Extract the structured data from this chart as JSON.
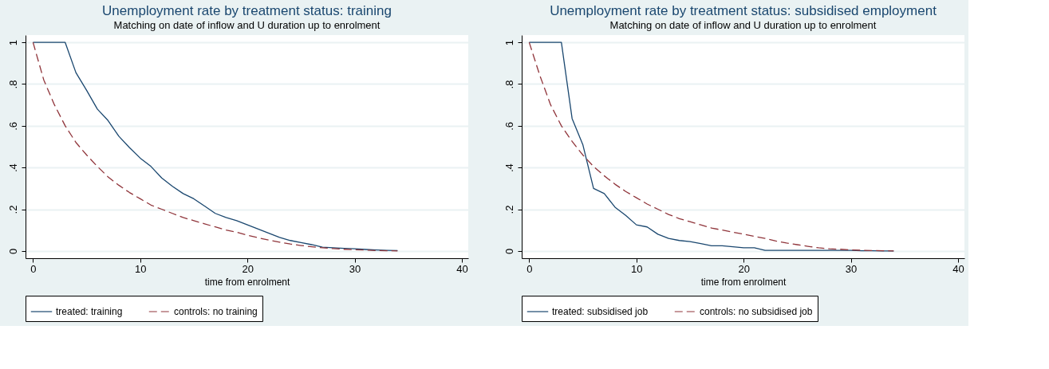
{
  "chart_data": [
    {
      "type": "line",
      "title": "Unemployment rate by treatment status: training",
      "subtitle": "Matching on date of inflow and U duration up to enrolment",
      "xlabel": "time from enrolment",
      "x": [
        0,
        1,
        2,
        3,
        4,
        5,
        6,
        7,
        8,
        9,
        10,
        11,
        12,
        13,
        14,
        15,
        16,
        17,
        18,
        19,
        20,
        21,
        22,
        23,
        24,
        25,
        26,
        27,
        28,
        29,
        30,
        31,
        32,
        33,
        34
      ],
      "series": [
        {
          "name": "treated: training",
          "color": "#1a476f",
          "line_style": "solid",
          "values": [
            1,
            1,
            1,
            1,
            0.855,
            0.77,
            0.68,
            0.625,
            0.55,
            0.495,
            0.445,
            0.405,
            0.35,
            0.31,
            0.275,
            0.25,
            0.215,
            0.18,
            0.16,
            0.145,
            0.125,
            0.105,
            0.085,
            0.065,
            0.05,
            0.04,
            0.03,
            0.018,
            0.015,
            0.012,
            0.01,
            0.007,
            0.005,
            0.003,
            0.002
          ]
        },
        {
          "name": "controls: no training",
          "color": "#90353b",
          "line_style": "dashed",
          "values": [
            1,
            0.82,
            0.7,
            0.6,
            0.52,
            0.46,
            0.405,
            0.355,
            0.315,
            0.28,
            0.25,
            0.22,
            0.2,
            0.18,
            0.16,
            0.145,
            0.13,
            0.115,
            0.1,
            0.09,
            0.075,
            0.063,
            0.052,
            0.042,
            0.033,
            0.026,
            0.02,
            0.015,
            0.011,
            0.008,
            0.006,
            0.004,
            0.002,
            0.001,
            0
          ]
        }
      ],
      "xlim": [
        -0.7,
        40.6
      ],
      "xticks": [
        0,
        10,
        20,
        30,
        40
      ],
      "ylim": [
        -0.035,
        1.035
      ],
      "yticks": [
        0,
        {
          "value": 0.2,
          "label": ".2"
        },
        {
          "value": 0.4,
          "label": ".4"
        },
        {
          "value": 0.6,
          "label": ".6"
        },
        {
          "value": 0.8,
          "label": ".8"
        },
        1
      ],
      "grid": "y",
      "legend": "bottom"
    },
    {
      "type": "line",
      "title": "Unemployment rate by treatment status: subsidised employment",
      "subtitle": "Matching on date of inflow and U duration up to enrolment",
      "xlabel": "time from enrolment",
      "x": [
        0,
        1,
        2,
        3,
        4,
        5,
        6,
        7,
        8,
        9,
        10,
        11,
        12,
        13,
        14,
        15,
        16,
        17,
        18,
        19,
        20,
        21,
        22,
        23,
        24,
        25,
        26,
        27,
        28,
        29,
        30,
        31,
        32,
        33,
        34
      ],
      "series": [
        {
          "name": "treated: subsidised job",
          "color": "#1a476f",
          "line_style": "solid",
          "values": [
            1,
            1,
            1,
            1,
            0.635,
            0.51,
            0.3,
            0.275,
            0.21,
            0.17,
            0.125,
            0.115,
            0.08,
            0.06,
            0.05,
            0.045,
            0.035,
            0.025,
            0.025,
            0.02,
            0.015,
            0.015,
            0.003,
            0.003,
            0.003,
            0.003,
            0.003,
            0.003,
            0.003,
            0.003,
            0.003,
            0.001,
            0.001,
            0,
            0
          ]
        },
        {
          "name": "controls: no subsidised job",
          "color": "#90353b",
          "line_style": "dashed",
          "values": [
            1,
            0.84,
            0.7,
            0.6,
            0.525,
            0.46,
            0.405,
            0.36,
            0.32,
            0.285,
            0.255,
            0.225,
            0.2,
            0.175,
            0.155,
            0.14,
            0.125,
            0.11,
            0.1,
            0.09,
            0.08,
            0.07,
            0.06,
            0.048,
            0.038,
            0.03,
            0.022,
            0.015,
            0.01,
            0.008,
            0.005,
            0.003,
            0.002,
            0.001,
            0
          ]
        }
      ],
      "xlim": [
        -0.7,
        40.6
      ],
      "xticks": [
        0,
        10,
        20,
        30,
        40
      ],
      "ylim": [
        -0.035,
        1.035
      ],
      "yticks": [
        0,
        {
          "value": 0.2,
          "label": ".2"
        },
        {
          "value": 0.4,
          "label": ".4"
        },
        {
          "value": 0.6,
          "label": ".6"
        },
        {
          "value": 0.8,
          "label": ".8"
        },
        1
      ],
      "grid": "y",
      "legend": "bottom"
    }
  ]
}
